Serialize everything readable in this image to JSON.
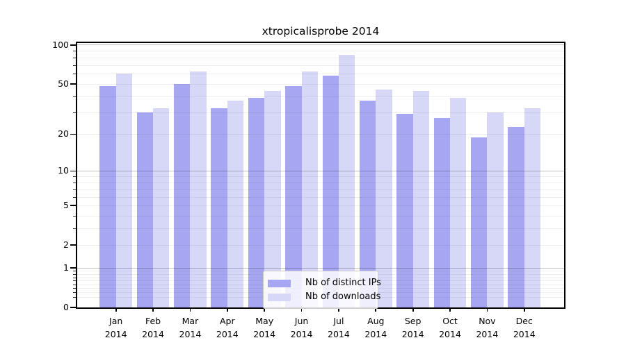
{
  "chart_data": {
    "type": "bar",
    "title": "xtropicalisprobe 2014",
    "year_label": "2014",
    "categories": [
      "Jan",
      "Feb",
      "Mar",
      "Apr",
      "May",
      "Jun",
      "Jul",
      "Aug",
      "Sep",
      "Oct",
      "Nov",
      "Dec"
    ],
    "series": [
      {
        "name": "Nb of distinct IPs",
        "color": "#a6a6f2",
        "values": [
          48,
          30,
          50,
          32,
          39,
          48,
          58,
          37,
          29,
          27,
          19,
          23
        ]
      },
      {
        "name": "Nb of downloads",
        "color": "#d7d7f8",
        "values": [
          60,
          32,
          62,
          37,
          44,
          62,
          84,
          45,
          44,
          39,
          30,
          32
        ]
      }
    ],
    "xlabel": "",
    "ylabel": "",
    "yscale": "log1p",
    "ylim": [
      0,
      104
    ],
    "y_tick_values": [
      0,
      1,
      2,
      5,
      10,
      20,
      50,
      100
    ],
    "y_tick_labels": [
      "0",
      "1",
      "2",
      "5",
      "10",
      "20",
      "50",
      "100"
    ],
    "y_major_gridline_values": [
      1,
      10,
      100
    ],
    "grid": "on",
    "legend_position": "lower center",
    "bar_color_dark": "#a6a6f2",
    "bar_color_light": "#d7d7f8",
    "axis_color": "#000000",
    "major_grid_color": "#c2c2c2",
    "minor_grid_color": "#efefef"
  }
}
